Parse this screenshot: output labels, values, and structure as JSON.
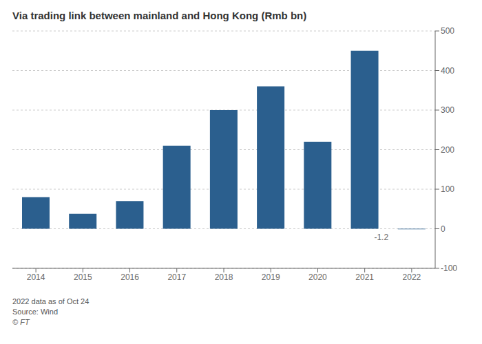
{
  "chart_data": {
    "type": "bar",
    "title": "Via trading link between mainland and Hong Kong (Rmb bn)",
    "categories": [
      "2014",
      "2015",
      "2016",
      "2017",
      "2018",
      "2019",
      "2020",
      "2021",
      "2022"
    ],
    "values": [
      80,
      38,
      70,
      210,
      300,
      360,
      220,
      450,
      -1.2
    ],
    "color": "#2b5f8e",
    "ylim": [
      -100,
      500
    ],
    "yticks": [
      -100,
      0,
      100,
      200,
      300,
      400,
      500
    ],
    "grid": true,
    "annotations": [
      {
        "category": "2022",
        "text": "-1.2"
      }
    ],
    "footnotes": [
      "2022 data as of Oct 24",
      "Source: Wind",
      "© FT"
    ]
  }
}
